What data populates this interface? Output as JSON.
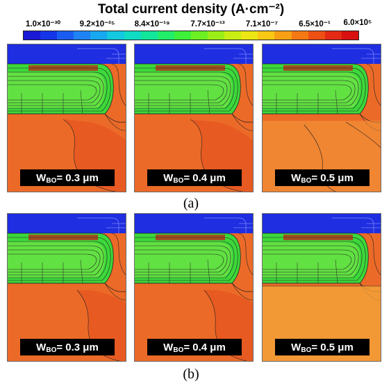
{
  "title": "Total current density (A·cm⁻²)",
  "colorbar": {
    "ticks": [
      "1.0×10⁻³⁰",
      "9.2×10⁻²⁵",
      "8.4×10⁻¹⁹",
      "7.7×10⁻¹³",
      "7.1×10⁻⁷",
      "6.5×10⁻¹",
      "6.0×10⁵"
    ],
    "colors": [
      "#1a1ad6",
      "#1535e8",
      "#1a5cf2",
      "#1f83f5",
      "#18a8f0",
      "#14c8e0",
      "#10dcc4",
      "#12e69a",
      "#22ee6a",
      "#3ef03a",
      "#6cf022",
      "#9cee18",
      "#c8ee14",
      "#ece614",
      "#f8c814",
      "#f8a014",
      "#f47814",
      "#ec5014",
      "#e42a14",
      "#d81010"
    ]
  },
  "rows": [
    {
      "caption": "(a)",
      "panels": [
        {
          "w_label_main": "W",
          "w_label_sub": "BO",
          "w_label_rest": "= 0.3 μm"
        },
        {
          "w_label_main": "W",
          "w_label_sub": "BO",
          "w_label_rest": "= 0.4 μm"
        },
        {
          "w_label_main": "W",
          "w_label_sub": "BO",
          "w_label_rest": "= 0.5 μm"
        }
      ]
    },
    {
      "caption": "(b)",
      "panels": [
        {
          "w_label_main": "W",
          "w_label_sub": "BO",
          "w_label_rest": "= 0.3 μm"
        },
        {
          "w_label_main": "W",
          "w_label_sub": "BO",
          "w_label_rest": "= 0.4 μm"
        },
        {
          "w_label_main": "W",
          "w_label_sub": "BO",
          "w_label_rest": "= 0.5 μm"
        }
      ]
    }
  ],
  "fill_colors": {
    "top": "#1e2ee0",
    "substrate_dark": "#ec6a28",
    "substrate_light": "#f49a3a",
    "green": "#3cd83a",
    "green_light": "#7ce84a",
    "brown": "#a0501e"
  }
}
